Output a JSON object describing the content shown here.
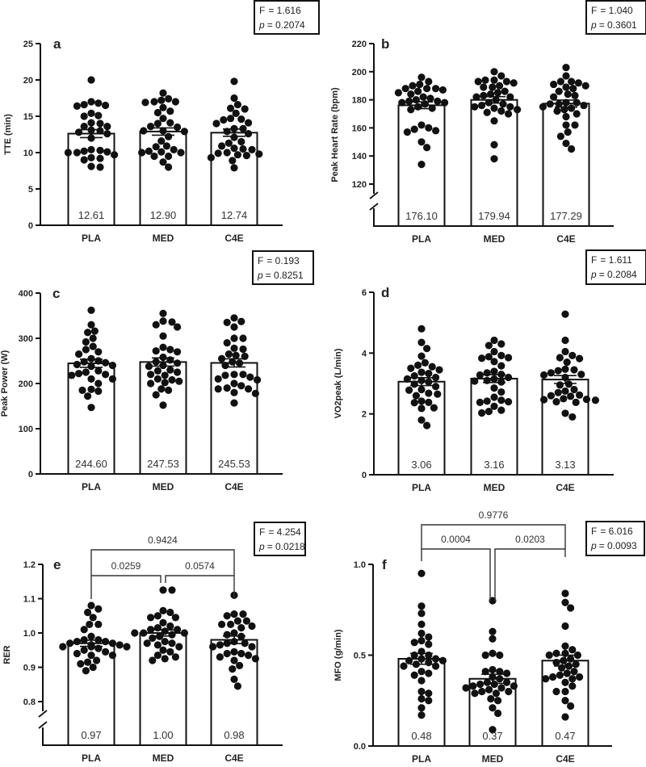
{
  "chart_data": [
    {
      "type": "bar",
      "panel": "a",
      "ylabel": "TTE (min)",
      "categories": [
        "PLA",
        "MED",
        "C4E"
      ],
      "ylim": [
        0,
        25
      ],
      "yticks": [
        "0",
        "5",
        "10",
        "15",
        "20",
        "25"
      ],
      "axis_break": false,
      "means": [
        12.61,
        12.9,
        12.74
      ],
      "mean_labels": [
        "12.61",
        "12.90",
        "12.74"
      ],
      "sem": [
        0.55,
        0.5,
        0.5
      ],
      "points": [
        [
          20,
          17,
          16.8,
          16.6,
          16.5,
          16.4,
          15.4,
          15.1,
          15,
          14.1,
          14,
          13.6,
          13.6,
          13.1,
          13,
          12.8,
          12.6,
          12,
          10.4,
          10.3,
          10.2,
          10.1,
          10,
          10,
          9.7,
          9.3,
          9.2,
          9,
          8.1,
          8
        ],
        [
          18.2,
          17.4,
          17.2,
          17,
          17,
          16.9,
          16.2,
          15.7,
          15.5,
          14.7,
          14.1,
          14,
          13.6,
          13.5,
          13,
          13,
          12.9,
          12.2,
          11.6,
          10.9,
          10.8,
          10.4,
          10.2,
          10.1,
          10,
          10,
          9.5,
          9.5,
          8.7,
          8
        ],
        [
          19.8,
          17.5,
          16.6,
          16.1,
          16,
          15.4,
          14.7,
          14.6,
          14.5,
          14.1,
          14,
          13.3,
          13.3,
          12.9,
          12.6,
          12.1,
          11.5,
          11.3,
          10.9,
          10.6,
          10.5,
          10.4,
          10,
          9.9,
          9.8,
          9.7,
          9.6,
          9.3,
          8.9,
          7.9
        ]
      ],
      "stats": {
        "F_label": "F",
        "F": "= 1.616",
        "p_label": "p",
        "p": "= 0.2074"
      },
      "comparisons": []
    },
    {
      "type": "bar",
      "panel": "b",
      "ylabel": "Peak Heart Rate (bpm)",
      "categories": [
        "PLA",
        "MED",
        "C4E"
      ],
      "ylim": [
        120,
        220
      ],
      "yticks": [
        "120",
        "140",
        "160",
        "180",
        "200",
        "220"
      ],
      "axis_break": true,
      "means": [
        176.1,
        179.94,
        177.29
      ],
      "mean_labels": [
        "176.10",
        "179.94",
        "177.29"
      ],
      "sem": [
        2.4,
        2.3,
        2.5
      ],
      "points": [
        [
          196,
          193,
          191,
          190,
          188,
          188,
          188,
          187,
          186,
          185,
          184,
          182,
          181,
          180,
          179,
          179,
          178,
          178,
          177,
          175,
          174,
          173,
          162,
          160,
          159,
          158,
          157,
          150,
          146,
          134
        ],
        [
          200,
          197,
          194,
          194,
          193,
          193,
          192,
          190,
          189,
          189,
          186,
          185,
          184,
          183,
          182,
          182,
          180,
          178,
          177,
          176,
          175,
          175,
          174,
          173,
          172,
          171,
          170,
          165,
          148,
          138
        ],
        [
          203,
          197,
          193,
          193,
          192,
          191,
          190,
          189,
          188,
          186,
          184,
          183,
          182,
          178,
          178,
          177,
          177,
          176,
          175,
          174,
          173,
          172,
          170,
          168,
          162,
          162,
          157,
          154,
          149,
          145
        ]
      ],
      "stats": {
        "F_label": "F",
        "F": "= 1.040",
        "p_label": "p",
        "p": "= 0.3601"
      },
      "comparisons": []
    },
    {
      "type": "bar",
      "panel": "c",
      "ylabel": "Peak Power (W)",
      "categories": [
        "PLA",
        "MED",
        "C4E"
      ],
      "ylim": [
        0,
        400
      ],
      "yticks": [
        "0",
        "100",
        "200",
        "300",
        "400"
      ],
      "axis_break": false,
      "means": [
        244.6,
        247.53,
        245.53
      ],
      "mean_labels": [
        "244.60",
        "247.53",
        "245.53"
      ],
      "sem": [
        9,
        9,
        9
      ],
      "points": [
        [
          362,
          330,
          316,
          313,
          300,
          292,
          282,
          275,
          270,
          265,
          255,
          250,
          248,
          246,
          242,
          240,
          238,
          228,
          225,
          222,
          220,
          218,
          210,
          210,
          200,
          187,
          185,
          183,
          172,
          147
        ],
        [
          355,
          338,
          336,
          330,
          325,
          305,
          280,
          275,
          272,
          270,
          258,
          252,
          248,
          245,
          240,
          238,
          230,
          228,
          225,
          220,
          218,
          210,
          208,
          205,
          202,
          200,
          188,
          185,
          175,
          152
        ],
        [
          345,
          337,
          335,
          325,
          300,
          300,
          290,
          278,
          276,
          265,
          262,
          260,
          255,
          248,
          245,
          240,
          220,
          220,
          218,
          214,
          210,
          208,
          200,
          195,
          190,
          188,
          188,
          180,
          178,
          157
        ]
      ],
      "stats": {
        "F_label": "F",
        "F": "= 0.193",
        "p_label": "p",
        "p": "= 0.8251"
      },
      "comparisons": []
    },
    {
      "type": "bar",
      "panel": "d",
      "ylabel": "VO2peak (L/min)",
      "categories": [
        "PLA",
        "MED",
        "C4E"
      ],
      "ylim": [
        0,
        6
      ],
      "yticks": [
        "0",
        "2",
        "4",
        "6"
      ],
      "axis_break": false,
      "means": [
        3.06,
        3.16,
        3.13
      ],
      "mean_labels": [
        "3.06",
        "3.16",
        "3.13"
      ],
      "sem": [
        0.13,
        0.13,
        0.13
      ],
      "points": [
        [
          4.8,
          4.35,
          4.15,
          3.9,
          3.68,
          3.6,
          3.55,
          3.5,
          3.45,
          3.37,
          3.33,
          3.25,
          3.2,
          3.15,
          3.1,
          3.05,
          2.98,
          2.9,
          2.8,
          2.78,
          2.68,
          2.65,
          2.6,
          2.42,
          2.38,
          2.37,
          2.2,
          2.18,
          1.8,
          1.62
        ],
        [
          4.42,
          4.3,
          4.25,
          4.05,
          3.92,
          3.88,
          3.85,
          3.83,
          3.72,
          3.58,
          3.4,
          3.35,
          3.3,
          3.28,
          3.2,
          3.15,
          3.1,
          3.08,
          3.05,
          2.85,
          2.72,
          2.55,
          2.45,
          2.42,
          2.4,
          2.38,
          2.25,
          2.12,
          2.08,
          2.03
        ],
        [
          5.28,
          4.42,
          4.05,
          3.92,
          3.85,
          3.82,
          3.7,
          3.47,
          3.45,
          3.42,
          3.35,
          3.3,
          3.28,
          3.2,
          2.98,
          2.95,
          2.8,
          2.75,
          2.7,
          2.62,
          2.6,
          2.58,
          2.5,
          2.48,
          2.47,
          2.45,
          2.4,
          2.38,
          2.02,
          1.9
        ]
      ],
      "stats": {
        "F_label": "F",
        "F": "= 1.611",
        "p_label": "p",
        "p": "= 0.2084"
      },
      "comparisons": []
    },
    {
      "type": "bar",
      "panel": "e",
      "ylabel": "RER",
      "categories": [
        "PLA",
        "MED",
        "C4E"
      ],
      "ylim": [
        0.8,
        1.2
      ],
      "yticks": [
        "0.8",
        "0.9",
        "1.0",
        "1.1",
        "1.2"
      ],
      "axis_break": true,
      "means": [
        0.97,
        1.0,
        0.98
      ],
      "mean_labels": [
        "0.97",
        "1.00",
        "0.98"
      ],
      "sem": [
        0.009,
        0.009,
        0.011
      ],
      "points": [
        [
          1.08,
          1.07,
          1.06,
          1.045,
          1.025,
          1.025,
          1.01,
          0.99,
          0.98,
          0.98,
          0.975,
          0.975,
          0.97,
          0.97,
          0.965,
          0.965,
          0.96,
          0.96,
          0.96,
          0.955,
          0.95,
          0.945,
          0.94,
          0.935,
          0.935,
          0.92,
          0.915,
          0.91,
          0.9,
          0.89
        ],
        [
          1.125,
          1.125,
          1.065,
          1.06,
          1.05,
          1.045,
          1.045,
          1.03,
          1.02,
          1.015,
          1.01,
          1.01,
          1.005,
          1.0,
          1.0,
          1.0,
          0.995,
          0.99,
          0.985,
          0.975,
          0.97,
          0.97,
          0.965,
          0.96,
          0.95,
          0.945,
          0.935,
          0.93,
          0.925,
          0.92
        ],
        [
          1.11,
          1.055,
          1.055,
          1.05,
          1.035,
          1.035,
          1.025,
          1.025,
          1.02,
          1.015,
          1.0,
          0.995,
          0.99,
          0.975,
          0.97,
          0.97,
          0.965,
          0.96,
          0.96,
          0.945,
          0.94,
          0.94,
          0.935,
          0.93,
          0.925,
          0.92,
          0.905,
          0.895,
          0.865,
          0.845
        ]
      ],
      "stats": {
        "F_label": "F",
        "F": "= 4.254",
        "p_label": "p",
        "p": "= 0.0218"
      },
      "comparisons": [
        {
          "pair": [
            "PLA",
            "C4E"
          ],
          "p": "0.9424",
          "level": "outer"
        },
        {
          "pair": [
            "PLA",
            "MED"
          ],
          "p": "0.0259",
          "level": "inner"
        },
        {
          "pair": [
            "MED",
            "C4E"
          ],
          "p": "0.0574",
          "level": "inner"
        }
      ]
    },
    {
      "type": "bar",
      "panel": "f",
      "ylabel": "MFO (g/min)",
      "categories": [
        "PLA",
        "MED",
        "C4E"
      ],
      "ylim": [
        0.0,
        1.0
      ],
      "yticks": [
        "0.0",
        "0.5",
        "1.0"
      ],
      "axis_break": false,
      "means": [
        0.48,
        0.37,
        0.47
      ],
      "mean_labels": [
        "0.48",
        "0.37",
        "0.47"
      ],
      "sem": [
        0.03,
        0.025,
        0.03
      ],
      "points": [
        [
          0.95,
          0.77,
          0.73,
          0.67,
          0.62,
          0.6,
          0.58,
          0.57,
          0.56,
          0.52,
          0.5,
          0.5,
          0.48,
          0.48,
          0.47,
          0.47,
          0.46,
          0.45,
          0.44,
          0.44,
          0.41,
          0.4,
          0.39,
          0.36,
          0.3,
          0.29,
          0.26,
          0.25,
          0.21,
          0.17
        ],
        [
          0.8,
          0.63,
          0.59,
          0.51,
          0.5,
          0.5,
          0.42,
          0.41,
          0.41,
          0.4,
          0.38,
          0.37,
          0.35,
          0.35,
          0.34,
          0.34,
          0.33,
          0.33,
          0.32,
          0.32,
          0.31,
          0.3,
          0.3,
          0.29,
          0.29,
          0.26,
          0.25,
          0.21,
          0.18,
          0.09
        ],
        [
          0.84,
          0.79,
          0.76,
          0.66,
          0.55,
          0.53,
          0.51,
          0.51,
          0.5,
          0.5,
          0.48,
          0.47,
          0.46,
          0.45,
          0.44,
          0.43,
          0.41,
          0.4,
          0.39,
          0.38,
          0.38,
          0.37,
          0.37,
          0.35,
          0.33,
          0.3,
          0.3,
          0.25,
          0.22,
          0.16
        ]
      ],
      "stats": {
        "F_label": "F",
        "F": "= 6.016",
        "p_label": "p",
        "p": "= 0.0093"
      },
      "comparisons": [
        {
          "pair": [
            "PLA",
            "C4E"
          ],
          "p": "0.9776",
          "level": "outer"
        },
        {
          "pair": [
            "PLA",
            "MED"
          ],
          "p": "0.0004",
          "level": "inner"
        },
        {
          "pair": [
            "MED",
            "C4E"
          ],
          "p": "0.0203",
          "level": "inner"
        }
      ]
    }
  ],
  "colors": {
    "dots": "#111111",
    "bar_fill": "#ffffff",
    "bar_stroke": "#111111"
  }
}
